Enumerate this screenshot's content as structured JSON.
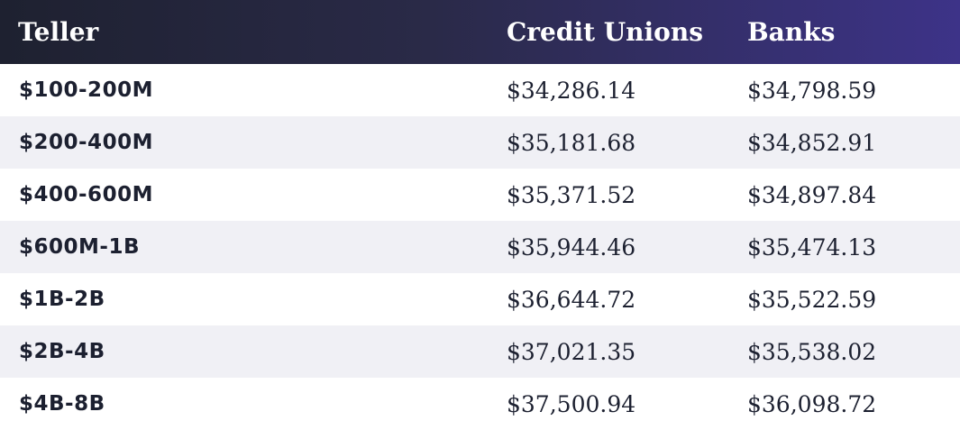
{
  "chart_data": {
    "type": "table",
    "columns": [
      "Teller",
      "Credit Unions",
      "Banks"
    ],
    "rows": [
      {
        "label": "$100-200M",
        "credit_unions": "$34,286.14",
        "banks": "$34,798.59"
      },
      {
        "label": "$200-400M",
        "credit_unions": "$35,181.68",
        "banks": "$34,852.91"
      },
      {
        "label": "$400-600M",
        "credit_unions": "$35,371.52",
        "banks": "$34,897.84"
      },
      {
        "label": "$600M-1B",
        "credit_unions": "$35,944.46",
        "banks": "$35,474.13"
      },
      {
        "label": "$1B-2B",
        "credit_unions": "$36,644.72",
        "banks": "$35,522.59"
      },
      {
        "label": "$2B-4B",
        "credit_unions": "$37,021.35",
        "banks": "$35,538.02"
      },
      {
        "label": "$4B-8B",
        "credit_unions": "$37,500.94",
        "banks": "$36,098.72"
      }
    ],
    "values": {
      "credit_unions": [
        34286.14,
        35181.68,
        35371.52,
        35944.46,
        36644.72,
        37021.35,
        37500.94
      ],
      "banks": [
        34798.59,
        34852.91,
        34897.84,
        35474.13,
        35522.59,
        35538.02,
        36098.72
      ]
    }
  },
  "colors": {
    "header_start": "#1e2130",
    "header_end": "#3d3388",
    "row_alt": "#f0f0f5",
    "text": "#1c2030"
  }
}
